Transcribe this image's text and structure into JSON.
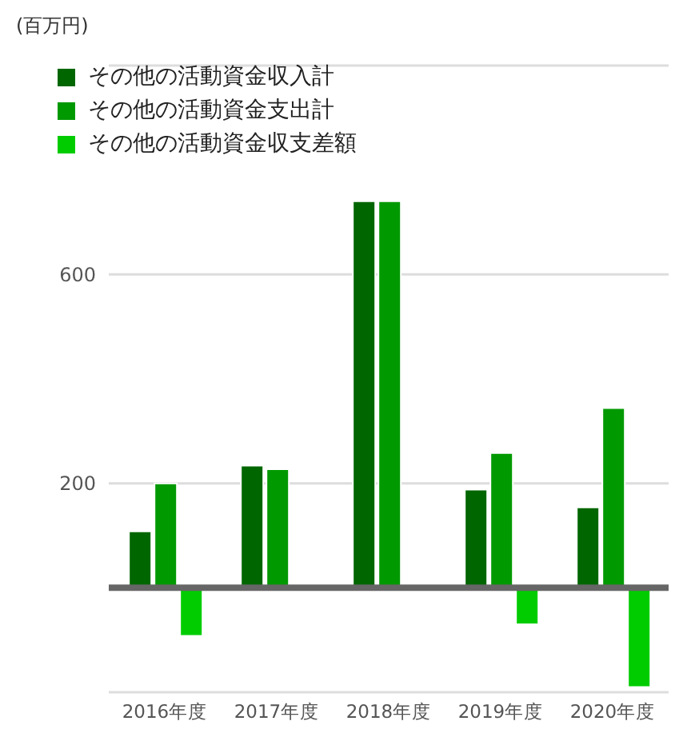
{
  "chart_data": {
    "type": "bar",
    "annotations": [
      "(百万円)"
    ],
    "categories": [
      "2016年度",
      "2017年度",
      "2018年度",
      "2019年度",
      "2020年度"
    ],
    "series": [
      {
        "name": "その他の活動資金収入計",
        "color": "#006600",
        "values": [
          108,
          234,
          740,
          188,
          154
        ]
      },
      {
        "name": "その他の活動資金支出計",
        "color": "#009900",
        "values": [
          200,
          227,
          740,
          258,
          344
        ]
      },
      {
        "name": "その他の活動資金収支差額",
        "color": "#00cc00",
        "values": [
          -92,
          null,
          0,
          -70,
          -190
        ]
      }
    ],
    "ylim": [
      -200,
      1000
    ],
    "yticks": [
      {
        "value": -200,
        "label": null
      },
      200,
      600,
      {
        "value": 1000,
        "label": null
      }
    ],
    "ref_lines": [
      {
        "axis": "y",
        "value": 0,
        "color": "#666666"
      }
    ],
    "grid": "y",
    "legend": "top left"
  }
}
